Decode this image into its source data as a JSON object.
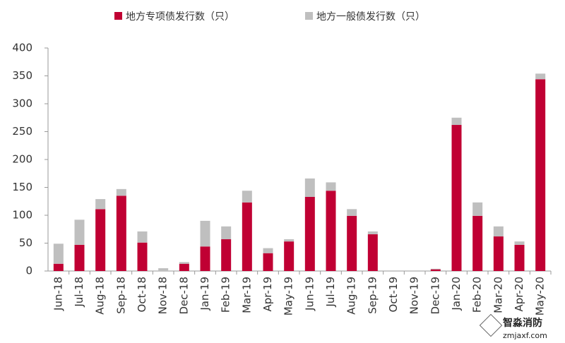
{
  "chart_data": {
    "type": "stacked_bar",
    "categories": [
      "Jun-18",
      "Jul-18",
      "Aug-18",
      "Sep-18",
      "Oct-18",
      "Nov-18",
      "Dec-18",
      "Jan-19",
      "Feb-19",
      "Mar-19",
      "Apr-19",
      "May-19",
      "Jun-19",
      "Jul-19",
      "Aug-19",
      "Sep-19",
      "Oct-19",
      "Nov-19",
      "Dec-19",
      "Jan-20",
      "Feb-20",
      "Mar-20",
      "Apr-20",
      "May-20"
    ],
    "series": [
      {
        "name": "地方专项债发行数（只）",
        "color": "#c00033",
        "values": [
          13,
          47,
          111,
          135,
          51,
          0,
          13,
          44,
          57,
          123,
          32,
          53,
          133,
          144,
          99,
          66,
          0,
          0,
          3,
          262,
          99,
          62,
          47,
          344
        ]
      },
      {
        "name": "地方一般债发行数（只）",
        "color": "#bfbfbf",
        "values": [
          36,
          45,
          18,
          12,
          20,
          5,
          3,
          46,
          23,
          21,
          9,
          4,
          33,
          15,
          12,
          5,
          0,
          0,
          1,
          13,
          24,
          18,
          6,
          10
        ]
      }
    ],
    "ylim": [
      0,
      400
    ],
    "yticks": [
      0,
      50,
      100,
      150,
      200,
      250,
      300,
      350,
      400
    ],
    "grid": false,
    "legend": "top",
    "watermark": [
      "智淼消防",
      "zmjaxf.com"
    ]
  }
}
